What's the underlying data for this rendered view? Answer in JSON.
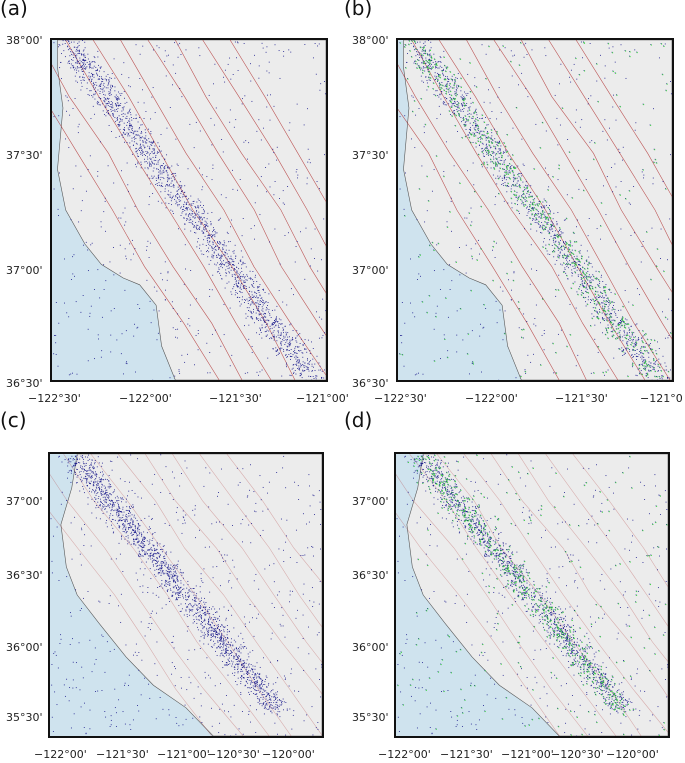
{
  "panels": [
    {
      "label": "(a)",
      "overlay": false,
      "x_ticks": [
        "−122°30'",
        "−122°00'",
        "−121°30'",
        "−121°00'"
      ],
      "y_ticks": [
        "38°00'",
        "37°30'",
        "37°00'",
        "36°30'"
      ]
    },
    {
      "label": "(b)",
      "overlay": true,
      "x_ticks": [
        "−122°30'",
        "−122°00'",
        "−121°30'",
        "−121°0"
      ],
      "y_ticks": [
        "38°00'",
        "37°30'",
        "37°00'",
        "36°30'"
      ]
    },
    {
      "label": "(c)",
      "overlay": false,
      "x_ticks": [
        "−122°00'",
        "−121°30'",
        "−121°00'",
        "−120°30'",
        "−120°00'"
      ],
      "y_ticks": [
        "37°00'",
        "36°30'",
        "36°00'",
        "35°30'"
      ]
    },
    {
      "label": "(d)",
      "overlay": true,
      "x_ticks": [
        "−122°00'",
        "−121°30'",
        "−121°00'",
        "−120°30'",
        "−120°00'"
      ],
      "y_ticks": [
        "37°00'",
        "36°30'",
        "36°00'",
        "35°30'"
      ]
    }
  ],
  "colors": {
    "events": "#1a1a8c",
    "events_overlay": "#33dd33",
    "faults": "#b03030",
    "land": "#ececec",
    "ocean": "#cfe3ee",
    "frame": "#111111"
  }
}
